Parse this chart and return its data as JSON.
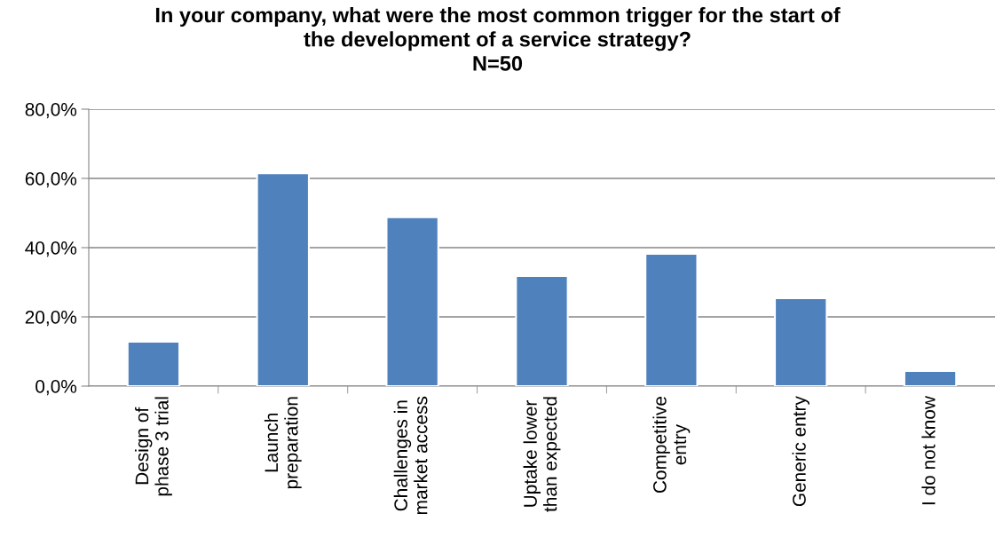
{
  "chart_data": {
    "type": "bar",
    "title": "In your company, what were the most common trigger for the start of\nthe development of a service strategy?\nN=50",
    "categories": [
      "Design of\nphase 3 trial",
      "Launch\npreparation",
      "Challenges in\nmarket access",
      "Uptake lower\nthan expected",
      "Competitive\nentry",
      "Generic entry",
      "I do not know"
    ],
    "values": [
      12.8,
      61.5,
      48.8,
      31.8,
      38.2,
      25.4,
      4.4
    ],
    "color": "#4f81bd",
    "ylim": [
      0,
      80
    ],
    "yticks": [
      {
        "value": 0,
        "label": "0,0%"
      },
      {
        "value": 20,
        "label": "20,0%"
      },
      {
        "value": 40,
        "label": "40,0%"
      },
      {
        "value": 60,
        "label": "60,0%"
      },
      {
        "value": 80,
        "label": "80,0%"
      }
    ],
    "grid": "y",
    "legend": false
  }
}
